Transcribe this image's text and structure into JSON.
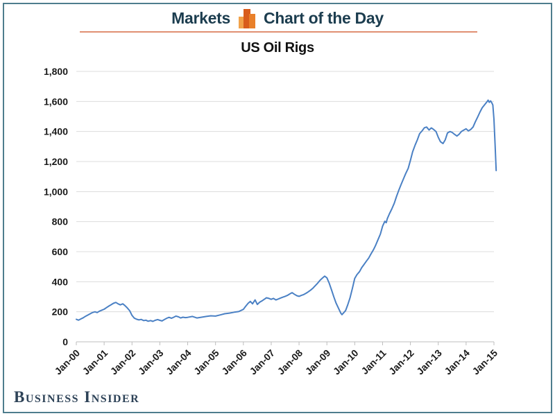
{
  "frame": {
    "border_color": "#4e7d8d"
  },
  "header": {
    "left_label": "Markets",
    "right_label": "Chart of the Day",
    "icon": "bar-chart-icon",
    "icon_colors": [
      "#f2a24b",
      "#d85c1c",
      "#e9802a"
    ],
    "text_color": "#1c3d4f",
    "rule_color": "#e08f72"
  },
  "footer": {
    "brand": "Business Insider"
  },
  "chart_data": {
    "type": "line",
    "title": "US Oil Rigs",
    "xlabel": "",
    "ylabel": "",
    "ylim": [
      0,
      1800
    ],
    "xlim": [
      2000.0,
      2015.17
    ],
    "grid": true,
    "gridline_color": "#dcdcdc",
    "axis_color": "#bdbdbd",
    "legend": "none",
    "y_ticks": [
      {
        "value": 0,
        "label": "0"
      },
      {
        "value": 200,
        "label": "200"
      },
      {
        "value": 400,
        "label": "400"
      },
      {
        "value": 600,
        "label": "600"
      },
      {
        "value": 800,
        "label": "800"
      },
      {
        "value": 1000,
        "label": "1,000"
      },
      {
        "value": 1200,
        "label": "1,200"
      },
      {
        "value": 1400,
        "label": "1,400"
      },
      {
        "value": 1600,
        "label": "1,600"
      },
      {
        "value": 1800,
        "label": "1,800"
      }
    ],
    "x_ticks": [
      {
        "value": 2000,
        "label": "Jan-00"
      },
      {
        "value": 2001,
        "label": "Jan-01"
      },
      {
        "value": 2002,
        "label": "Jan-02"
      },
      {
        "value": 2003,
        "label": "Jan-03"
      },
      {
        "value": 2004,
        "label": "Jan-04"
      },
      {
        "value": 2005,
        "label": "Jan-05"
      },
      {
        "value": 2006,
        "label": "Jan-06"
      },
      {
        "value": 2007,
        "label": "Jan-07"
      },
      {
        "value": 2008,
        "label": "Jan-08"
      },
      {
        "value": 2009,
        "label": "Jan-09"
      },
      {
        "value": 2010,
        "label": "Jan-10"
      },
      {
        "value": 2011,
        "label": "Jan-11"
      },
      {
        "value": 2012,
        "label": "Jan-12"
      },
      {
        "value": 2013,
        "label": "Jan-13"
      },
      {
        "value": 2014,
        "label": "Jan-14"
      },
      {
        "value": 2015,
        "label": "Jan-15"
      }
    ],
    "series": [
      {
        "name": "US oil rig count",
        "color": "#4a80c4",
        "points": [
          [
            2000.0,
            150
          ],
          [
            2000.08,
            144
          ],
          [
            2000.17,
            153
          ],
          [
            2000.25,
            160
          ],
          [
            2000.33,
            170
          ],
          [
            2000.42,
            179
          ],
          [
            2000.5,
            187
          ],
          [
            2000.58,
            195
          ],
          [
            2000.67,
            200
          ],
          [
            2000.75,
            195
          ],
          [
            2000.83,
            204
          ],
          [
            2000.92,
            211
          ],
          [
            2001.0,
            217
          ],
          [
            2001.08,
            227
          ],
          [
            2001.17,
            238
          ],
          [
            2001.25,
            247
          ],
          [
            2001.33,
            256
          ],
          [
            2001.42,
            262
          ],
          [
            2001.5,
            253
          ],
          [
            2001.58,
            246
          ],
          [
            2001.67,
            253
          ],
          [
            2001.75,
            241
          ],
          [
            2001.83,
            226
          ],
          [
            2001.92,
            206
          ],
          [
            2002.0,
            176
          ],
          [
            2002.08,
            158
          ],
          [
            2002.17,
            150
          ],
          [
            2002.25,
            146
          ],
          [
            2002.33,
            149
          ],
          [
            2002.42,
            141
          ],
          [
            2002.5,
            144
          ],
          [
            2002.58,
            137
          ],
          [
            2002.67,
            141
          ],
          [
            2002.75,
            136
          ],
          [
            2002.83,
            143
          ],
          [
            2002.92,
            148
          ],
          [
            2003.0,
            143
          ],
          [
            2003.08,
            139
          ],
          [
            2003.17,
            149
          ],
          [
            2003.25,
            157
          ],
          [
            2003.33,
            163
          ],
          [
            2003.42,
            157
          ],
          [
            2003.5,
            164
          ],
          [
            2003.58,
            171
          ],
          [
            2003.67,
            166
          ],
          [
            2003.75,
            159
          ],
          [
            2003.83,
            164
          ],
          [
            2003.92,
            161
          ],
          [
            2004.0,
            163
          ],
          [
            2004.17,
            169
          ],
          [
            2004.33,
            159
          ],
          [
            2004.5,
            164
          ],
          [
            2004.67,
            169
          ],
          [
            2004.83,
            173
          ],
          [
            2005.0,
            171
          ],
          [
            2005.17,
            179
          ],
          [
            2005.33,
            187
          ],
          [
            2005.5,
            191
          ],
          [
            2005.67,
            197
          ],
          [
            2005.83,
            201
          ],
          [
            2006.0,
            216
          ],
          [
            2006.08,
            236
          ],
          [
            2006.17,
            256
          ],
          [
            2006.25,
            269
          ],
          [
            2006.33,
            253
          ],
          [
            2006.42,
            279
          ],
          [
            2006.5,
            249
          ],
          [
            2006.58,
            263
          ],
          [
            2006.67,
            273
          ],
          [
            2006.75,
            283
          ],
          [
            2006.83,
            293
          ],
          [
            2006.92,
            289
          ],
          [
            2007.0,
            283
          ],
          [
            2007.08,
            289
          ],
          [
            2007.17,
            279
          ],
          [
            2007.25,
            285
          ],
          [
            2007.33,
            291
          ],
          [
            2007.42,
            297
          ],
          [
            2007.5,
            303
          ],
          [
            2007.58,
            309
          ],
          [
            2007.67,
            319
          ],
          [
            2007.75,
            327
          ],
          [
            2007.83,
            317
          ],
          [
            2007.92,
            307
          ],
          [
            2008.0,
            303
          ],
          [
            2008.08,
            309
          ],
          [
            2008.17,
            315
          ],
          [
            2008.25,
            323
          ],
          [
            2008.33,
            333
          ],
          [
            2008.42,
            345
          ],
          [
            2008.5,
            357
          ],
          [
            2008.58,
            373
          ],
          [
            2008.67,
            391
          ],
          [
            2008.75,
            409
          ],
          [
            2008.83,
            423
          ],
          [
            2008.92,
            437
          ],
          [
            2009.0,
            426
          ],
          [
            2009.08,
            392
          ],
          [
            2009.17,
            344
          ],
          [
            2009.25,
            299
          ],
          [
            2009.33,
            258
          ],
          [
            2009.42,
            222
          ],
          [
            2009.5,
            190
          ],
          [
            2009.54,
            181
          ],
          [
            2009.58,
            189
          ],
          [
            2009.67,
            207
          ],
          [
            2009.75,
            247
          ],
          [
            2009.83,
            292
          ],
          [
            2009.92,
            358
          ],
          [
            2010.0,
            422
          ],
          [
            2010.08,
            447
          ],
          [
            2010.17,
            467
          ],
          [
            2010.25,
            494
          ],
          [
            2010.33,
            514
          ],
          [
            2010.42,
            537
          ],
          [
            2010.5,
            557
          ],
          [
            2010.58,
            584
          ],
          [
            2010.67,
            612
          ],
          [
            2010.75,
            642
          ],
          [
            2010.83,
            677
          ],
          [
            2010.92,
            717
          ],
          [
            2011.0,
            770
          ],
          [
            2011.08,
            802
          ],
          [
            2011.13,
            793
          ],
          [
            2011.17,
            820
          ],
          [
            2011.25,
            854
          ],
          [
            2011.33,
            884
          ],
          [
            2011.42,
            922
          ],
          [
            2011.5,
            967
          ],
          [
            2011.58,
            1007
          ],
          [
            2011.67,
            1050
          ],
          [
            2011.75,
            1085
          ],
          [
            2011.83,
            1120
          ],
          [
            2011.92,
            1155
          ],
          [
            2012.0,
            1208
          ],
          [
            2012.08,
            1265
          ],
          [
            2012.17,
            1310
          ],
          [
            2012.25,
            1345
          ],
          [
            2012.33,
            1385
          ],
          [
            2012.42,
            1405
          ],
          [
            2012.5,
            1425
          ],
          [
            2012.58,
            1430
          ],
          [
            2012.67,
            1410
          ],
          [
            2012.75,
            1424
          ],
          [
            2012.83,
            1414
          ],
          [
            2012.92,
            1400
          ],
          [
            2013.0,
            1362
          ],
          [
            2013.08,
            1332
          ],
          [
            2013.17,
            1320
          ],
          [
            2013.25,
            1345
          ],
          [
            2013.33,
            1390
          ],
          [
            2013.42,
            1400
          ],
          [
            2013.5,
            1394
          ],
          [
            2013.58,
            1382
          ],
          [
            2013.67,
            1370
          ],
          [
            2013.75,
            1382
          ],
          [
            2013.83,
            1400
          ],
          [
            2013.92,
            1410
          ],
          [
            2014.0,
            1418
          ],
          [
            2014.08,
            1404
          ],
          [
            2014.17,
            1414
          ],
          [
            2014.25,
            1430
          ],
          [
            2014.33,
            1464
          ],
          [
            2014.42,
            1498
          ],
          [
            2014.5,
            1530
          ],
          [
            2014.58,
            1558
          ],
          [
            2014.67,
            1580
          ],
          [
            2014.75,
            1598
          ],
          [
            2014.79,
            1609
          ],
          [
            2014.83,
            1594
          ],
          [
            2014.88,
            1604
          ],
          [
            2014.92,
            1592
          ],
          [
            2014.96,
            1576
          ],
          [
            2015.0,
            1482
          ],
          [
            2015.04,
            1317
          ],
          [
            2015.08,
            1140
          ]
        ]
      }
    ]
  }
}
